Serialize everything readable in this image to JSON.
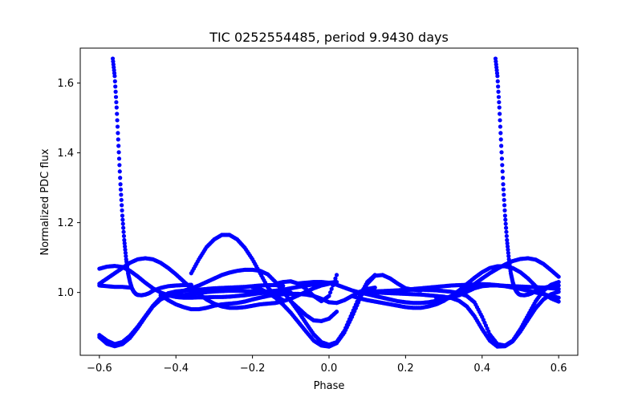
{
  "chart_data": {
    "type": "scatter",
    "title": "TIC 0252554485, period 9.9430 days",
    "xlabel": "Phase",
    "ylabel": "Normalized PDC flux",
    "xlim": [
      -0.65,
      0.65
    ],
    "ylim": [
      0.82,
      1.7
    ],
    "xticks": [
      -0.6,
      -0.4,
      -0.2,
      0.0,
      0.2,
      0.4,
      0.6
    ],
    "xtick_labels": [
      "−0.6",
      "−0.4",
      "−0.2",
      "0.0",
      "0.2",
      "0.4",
      "0.6"
    ],
    "yticks": [
      1.0,
      1.2,
      1.4,
      1.6
    ],
    "ytick_labels": [
      "1.0",
      "1.2",
      "1.4",
      "1.6"
    ],
    "grid": false,
    "marker_color": "#0000ff",
    "series": [
      {
        "x": [
          -0.6,
          -0.58,
          -0.56,
          -0.54,
          -0.52,
          -0.5,
          -0.48,
          -0.46,
          -0.44,
          -0.42,
          -0.4,
          -0.38,
          -0.36,
          -0.34,
          -0.32,
          -0.3,
          -0.28,
          -0.26,
          -0.24,
          -0.22,
          -0.2,
          -0.18,
          -0.16,
          -0.14,
          -0.12
        ],
        "y": [
          0.878,
          0.862,
          0.852,
          0.858,
          0.876,
          0.902,
          0.932,
          0.962,
          0.985,
          0.998,
          1.003,
          1.005,
          1.006,
          1.008,
          1.01,
          1.012,
          1.013,
          1.014,
          1.015,
          1.016,
          1.018,
          1.02,
          1.021,
          1.021,
          1.019
        ]
      },
      {
        "x": [
          -0.6,
          -0.58,
          -0.56,
          -0.54,
          -0.52,
          -0.5,
          -0.48,
          -0.46,
          -0.44,
          -0.42,
          -0.4,
          -0.38,
          -0.36,
          -0.34,
          -0.32,
          -0.3,
          -0.28,
          -0.26,
          -0.24,
          -0.22,
          -0.2,
          -0.18,
          -0.16,
          -0.14,
          -0.12,
          -0.1,
          -0.08,
          -0.06,
          -0.04,
          -0.02,
          0.0,
          0.02
        ],
        "y": [
          0.872,
          0.853,
          0.846,
          0.852,
          0.87,
          0.898,
          0.93,
          0.96,
          0.98,
          0.99,
          0.993,
          0.993,
          0.995,
          0.998,
          1.001,
          1.003,
          1.004,
          1.005,
          1.005,
          1.004,
          1.003,
          1.002,
          1.003,
          1.005,
          1.008,
          1.012,
          1.016,
          1.02,
          1.023,
          1.026,
          1.028,
          1.03
        ]
      },
      {
        "x": [
          -0.6,
          -0.58,
          -0.56,
          -0.54,
          -0.52,
          -0.5,
          -0.48,
          -0.46,
          -0.44,
          -0.42,
          -0.4,
          -0.38,
          -0.36,
          -0.34,
          -0.32,
          -0.3,
          -0.28,
          -0.26,
          -0.24,
          -0.22,
          -0.2,
          -0.18,
          -0.16,
          -0.14,
          -0.12,
          -0.1
        ],
        "y": [
          1.068,
          1.074,
          1.076,
          1.073,
          1.062,
          1.046,
          1.028,
          1.012,
          1.0,
          0.992,
          0.987,
          0.985,
          0.985,
          0.986,
          0.986,
          0.987,
          0.987,
          0.988,
          0.99,
          0.992,
          0.995,
          0.998,
          1.0,
          1.001,
          1.001,
          1.0
        ]
      },
      {
        "x": [
          -0.6,
          -0.58,
          -0.56,
          -0.54,
          -0.52,
          -0.5,
          -0.48,
          -0.46,
          -0.44,
          -0.42,
          -0.4,
          -0.38,
          -0.36,
          -0.34,
          -0.32,
          -0.3,
          -0.28,
          -0.26,
          -0.24,
          -0.22,
          -0.2,
          -0.18,
          -0.16,
          -0.14,
          -0.12,
          -0.1,
          -0.08,
          -0.06,
          -0.04,
          -0.02,
          0.0
        ],
        "y": [
          1.025,
          1.04,
          1.055,
          1.07,
          1.085,
          1.095,
          1.098,
          1.095,
          1.085,
          1.07,
          1.052,
          1.032,
          1.012,
          0.995,
          0.98,
          0.968,
          0.96,
          0.956,
          0.956,
          0.958,
          0.962,
          0.966,
          0.968,
          0.97,
          0.975,
          0.982,
          0.992,
          1.002,
          1.012,
          1.02,
          1.025
        ]
      },
      {
        "x": [
          -0.6,
          -0.58,
          -0.56,
          -0.54,
          -0.52
        ],
        "y": [
          1.02,
          1.018,
          1.016,
          1.016,
          1.014
        ]
      },
      {
        "x": [
          -0.565,
          -0.56,
          -0.555,
          -0.55,
          -0.545,
          -0.54,
          -0.535,
          -0.53,
          -0.525,
          -0.52,
          -0.515,
          -0.51,
          -0.505,
          -0.5,
          -0.49,
          -0.48,
          -0.47,
          -0.46,
          -0.44,
          -0.42,
          -0.4,
          -0.38,
          -0.36
        ],
        "y": [
          1.67,
          1.62,
          1.53,
          1.42,
          1.31,
          1.22,
          1.15,
          1.095,
          1.055,
          1.03,
          1.012,
          1.002,
          0.996,
          0.993,
          0.992,
          0.994,
          0.998,
          1.005,
          1.013,
          1.018,
          1.02,
          1.021,
          1.022
        ]
      },
      {
        "x": [
          -0.36,
          -0.34,
          -0.32,
          -0.3,
          -0.28,
          -0.26,
          -0.24,
          -0.22,
          -0.2,
          -0.18,
          -0.16,
          -0.14,
          -0.12
        ],
        "y": [
          1.055,
          1.095,
          1.13,
          1.152,
          1.165,
          1.165,
          1.152,
          1.128,
          1.095,
          1.055,
          1.015,
          0.99,
          0.978
        ]
      },
      {
        "x": [
          -0.44,
          -0.42,
          -0.4,
          -0.38,
          -0.36,
          -0.34,
          -0.32,
          -0.3,
          -0.28,
          -0.26,
          -0.24,
          -0.22,
          -0.2,
          -0.18,
          -0.16,
          -0.14,
          -0.12,
          -0.1,
          -0.08,
          -0.06,
          -0.04,
          -0.02,
          0.0,
          0.02,
          0.04,
          0.06,
          0.08,
          0.1,
          0.12
        ],
        "y": [
          0.992,
          0.978,
          0.966,
          0.958,
          0.952,
          0.952,
          0.956,
          0.962,
          0.966,
          0.968,
          0.97,
          0.974,
          0.98,
          0.985,
          0.99,
          0.993,
          0.995,
          0.996,
          0.996,
          0.994,
          0.99,
          0.982,
          0.972,
          0.97,
          0.978,
          0.99,
          1.002,
          1.01,
          1.014
        ]
      },
      {
        "x": [
          -0.4,
          -0.38,
          -0.36,
          -0.34,
          -0.32,
          -0.3,
          -0.28,
          -0.26,
          -0.24,
          -0.22,
          -0.2,
          -0.18,
          -0.16,
          -0.14,
          -0.12,
          -0.1,
          -0.08,
          -0.06,
          -0.04,
          -0.02,
          0.0,
          0.02,
          0.04,
          0.06,
          0.08,
          0.1,
          0.12
        ],
        "y": [
          1.0,
          1.005,
          1.012,
          1.02,
          1.03,
          1.04,
          1.05,
          1.057,
          1.062,
          1.065,
          1.065,
          1.062,
          1.052,
          1.03,
          1.002,
          0.975,
          0.945,
          0.912,
          0.88,
          0.858,
          0.85,
          0.858,
          0.89,
          0.94,
          0.99,
          1.03,
          1.05
        ]
      },
      {
        "x": [
          -0.2,
          -0.18,
          -0.16,
          -0.14,
          -0.12,
          -0.1,
          -0.08,
          -0.06,
          -0.04,
          -0.02,
          0.0,
          0.02,
          0.04,
          0.06,
          0.08,
          0.1,
          0.12,
          0.14,
          0.16,
          0.18,
          0.2,
          0.22,
          0.24
        ],
        "y": [
          1.015,
          1.01,
          1.0,
          0.985,
          0.965,
          0.942,
          0.915,
          0.888,
          0.862,
          0.848,
          0.845,
          0.855,
          0.885,
          0.93,
          0.98,
          1.025,
          1.048,
          1.05,
          1.04,
          1.025,
          1.012,
          1.008,
          1.006
        ]
      },
      {
        "x": [
          -0.1,
          -0.08,
          -0.06,
          -0.04,
          -0.02,
          0.0,
          0.02
        ],
        "y": [
          0.975,
          0.955,
          0.935,
          0.92,
          0.918,
          0.925,
          0.945
        ]
      },
      {
        "x": [
          -0.14,
          -0.12,
          -0.1,
          -0.08,
          -0.06,
          -0.04,
          -0.02,
          0.0,
          0.02
        ],
        "y": [
          1.025,
          1.03,
          1.032,
          1.025,
          1.01,
          0.99,
          0.975,
          0.99,
          1.05
        ]
      },
      {
        "x": [
          -0.08,
          -0.06,
          -0.04,
          -0.02,
          0.0,
          0.02,
          0.04,
          0.06,
          0.08,
          0.1,
          0.12,
          0.14,
          0.16,
          0.18,
          0.2,
          0.22,
          0.24,
          0.26,
          0.28,
          0.3,
          0.32,
          0.34,
          0.36,
          0.38,
          0.4,
          0.42,
          0.44,
          0.46,
          0.48,
          0.5,
          0.52,
          0.54,
          0.56,
          0.58,
          0.6
        ],
        "y": [
          1.026,
          1.028,
          1.03,
          1.03,
          1.028,
          1.022,
          1.014,
          1.006,
          1.0,
          0.995,
          0.99,
          0.985,
          0.98,
          0.975,
          0.972,
          0.97,
          0.97,
          0.972,
          0.976,
          0.982,
          0.99,
          1.0,
          1.012,
          1.024,
          1.04,
          1.055,
          1.068,
          1.08,
          1.09,
          1.096,
          1.098,
          1.094,
          1.082,
          1.064,
          1.045
        ]
      },
      {
        "x": [
          0.06,
          0.08,
          0.1,
          0.12,
          0.14,
          0.16,
          0.18,
          0.2,
          0.22,
          0.24,
          0.26,
          0.28,
          0.3,
          0.32,
          0.34,
          0.36,
          0.38,
          0.4,
          0.42,
          0.44,
          0.46,
          0.48,
          0.5,
          0.52,
          0.54,
          0.56,
          0.58,
          0.6
        ],
        "y": [
          0.99,
          0.983,
          0.978,
          0.974,
          0.97,
          0.966,
          0.962,
          0.958,
          0.956,
          0.956,
          0.96,
          0.966,
          0.976,
          0.99,
          1.006,
          1.024,
          1.042,
          1.058,
          1.07,
          1.075,
          1.075,
          1.07,
          1.058,
          1.04,
          1.018,
          0.998,
          0.983,
          0.974
        ]
      },
      {
        "x": [
          0.1,
          0.12,
          0.14,
          0.16,
          0.18,
          0.2,
          0.22,
          0.24,
          0.26,
          0.28,
          0.3,
          0.32,
          0.34,
          0.36,
          0.38,
          0.4,
          0.42,
          0.44,
          0.46,
          0.48,
          0.5,
          0.52,
          0.54,
          0.56,
          0.58,
          0.6
        ],
        "y": [
          1.002,
          1.003,
          1.004,
          1.005,
          1.006,
          1.007,
          1.008,
          1.008,
          1.007,
          1.006,
          1.004,
          1.002,
          0.998,
          0.99,
          0.972,
          0.93,
          0.88,
          0.852,
          0.848,
          0.862,
          0.895,
          0.935,
          0.975,
          1.005,
          1.022,
          1.03
        ]
      },
      {
        "x": [
          0.12,
          0.14,
          0.16,
          0.18,
          0.2,
          0.22,
          0.24,
          0.26,
          0.28,
          0.3,
          0.32,
          0.34,
          0.36,
          0.38,
          0.4,
          0.42,
          0.44,
          0.46,
          0.48,
          0.5,
          0.52,
          0.54,
          0.56,
          0.58,
          0.6
        ],
        "y": [
          1.0,
          0.999,
          0.998,
          0.997,
          0.996,
          0.995,
          0.994,
          0.992,
          0.99,
          0.988,
          0.984,
          0.976,
          0.96,
          0.932,
          0.895,
          0.862,
          0.845,
          0.846,
          0.86,
          0.888,
          0.922,
          0.955,
          0.98,
          0.995,
          1.002
        ]
      },
      {
        "x": [
          0.16,
          0.18,
          0.2,
          0.22,
          0.24,
          0.26,
          0.28,
          0.3,
          0.32,
          0.34,
          0.36,
          0.38,
          0.4,
          0.42,
          0.44,
          0.46,
          0.48,
          0.5,
          0.52,
          0.54,
          0.56,
          0.58,
          0.6
        ],
        "y": [
          1.004,
          1.006,
          1.008,
          1.01,
          1.012,
          1.014,
          1.016,
          1.018,
          1.02,
          1.021,
          1.022,
          1.023,
          1.024,
          1.023,
          1.021,
          1.019,
          1.018,
          1.017,
          1.016,
          1.015,
          1.014,
          1.012,
          1.01
        ]
      },
      {
        "x": [
          0.435,
          0.44,
          0.445,
          0.45,
          0.455,
          0.46,
          0.465,
          0.47,
          0.475,
          0.48,
          0.485,
          0.49,
          0.495,
          0.5,
          0.51,
          0.52,
          0.53,
          0.54,
          0.56,
          0.58,
          0.6
        ],
        "y": [
          1.67,
          1.62,
          1.53,
          1.42,
          1.31,
          1.22,
          1.15,
          1.095,
          1.055,
          1.03,
          1.012,
          1.002,
          0.996,
          0.993,
          0.992,
          0.994,
          0.998,
          1.005,
          1.013,
          1.018,
          1.02
        ]
      },
      {
        "x": [
          0.28,
          0.3,
          0.32,
          0.34,
          0.36,
          0.38,
          0.4,
          0.42,
          0.44,
          0.46,
          0.48,
          0.5,
          0.52,
          0.54,
          0.56,
          0.58,
          0.6
        ],
        "y": [
          0.985,
          0.982,
          0.985,
          0.992,
          1.002,
          1.012,
          1.018,
          1.02,
          1.02,
          1.018,
          1.014,
          1.01,
          1.005,
          1.0,
          0.995,
          0.99,
          0.985
        ]
      }
    ]
  }
}
